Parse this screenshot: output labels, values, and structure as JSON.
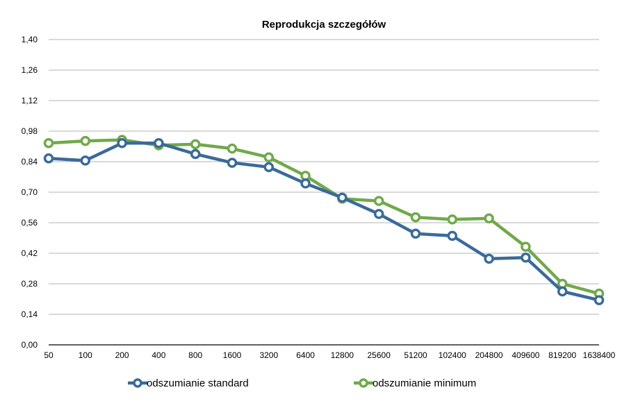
{
  "chart_data": {
    "type": "line",
    "title": "Reprodukcja szczegółów",
    "xlabel": "",
    "ylabel": "",
    "categories": [
      "50",
      "100",
      "200",
      "400",
      "800",
      "1600",
      "3200",
      "6400",
      "12800",
      "25600",
      "51200",
      "102400",
      "204800",
      "409600",
      "819200",
      "1638400"
    ],
    "y_ticks": [
      "0,00",
      "0,14",
      "0,28",
      "0,42",
      "0,56",
      "0,70",
      "0,84",
      "0,98",
      "1,12",
      "1,26",
      "1,40"
    ],
    "ylim": [
      0,
      1.4
    ],
    "grid": true,
    "legend_position": "bottom",
    "series": [
      {
        "name": "odszumianie standard",
        "color": "#3a6a9a",
        "values": [
          0.855,
          0.845,
          0.925,
          0.925,
          0.875,
          0.835,
          0.815,
          0.74,
          0.675,
          0.6,
          0.51,
          0.5,
          0.395,
          0.4,
          0.245,
          0.205
        ]
      },
      {
        "name": "odszumianie minimum",
        "color": "#70a94b",
        "values": [
          0.925,
          0.935,
          0.94,
          0.915,
          0.92,
          0.9,
          0.86,
          0.775,
          0.67,
          0.66,
          0.585,
          0.575,
          0.58,
          0.45,
          0.28,
          0.235
        ]
      }
    ]
  }
}
